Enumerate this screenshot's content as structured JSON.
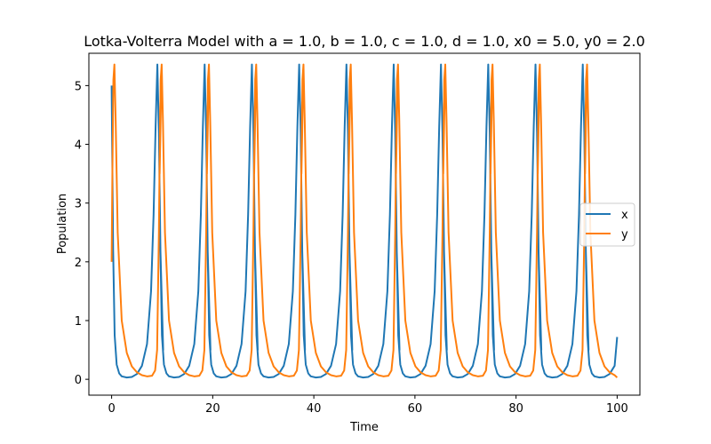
{
  "chart_data": {
    "type": "line",
    "title": "Lotka-Volterra Model with a = 1.0, b = 1.0, c = 1.0, d = 1.0, x0 = 5.0, y0 = 2.0",
    "xlabel": "Time",
    "ylabel": "Population",
    "xlim": [
      -4.5,
      104.5
    ],
    "ylim": [
      -0.27,
      5.55
    ],
    "xticks": [
      0,
      20,
      40,
      60,
      80,
      100
    ],
    "yticks": [
      0,
      1,
      2,
      3,
      4,
      5
    ],
    "grid": false,
    "legend_position": "center-right",
    "model": {
      "a": 1.0,
      "b": 1.0,
      "c": 1.0,
      "d": 1.0,
      "x0": 5.0,
      "y0": 2.0,
      "t_start": 0,
      "t_end": 100
    },
    "series": [
      {
        "name": "x",
        "color": "#1f77b4",
        "points": [
          [
            0.0,
            5.0
          ],
          [
            0.3,
            2.2
          ],
          [
            0.6,
            0.75
          ],
          [
            1.0,
            0.25
          ],
          [
            1.5,
            0.1
          ],
          [
            2.0,
            0.05
          ],
          [
            3.0,
            0.03
          ],
          [
            4.0,
            0.04
          ],
          [
            5.0,
            0.09
          ],
          [
            6.0,
            0.23
          ],
          [
            7.0,
            0.6
          ],
          [
            7.8,
            1.5
          ],
          [
            8.3,
            2.8
          ],
          [
            8.7,
            4.3
          ],
          [
            9.05,
            5.36
          ],
          [
            9.35,
            4.2
          ],
          [
            9.7,
            1.9
          ],
          [
            10.2,
            0.5
          ]
        ],
        "period": 9.35,
        "last": [
          100.0,
          0.72
        ]
      },
      {
        "name": "y",
        "color": "#ff7f0e",
        "points": [
          [
            0.0,
            2.0
          ],
          [
            0.15,
            3.5
          ],
          [
            0.35,
            5.1
          ],
          [
            0.55,
            5.36
          ],
          [
            0.8,
            4.4
          ],
          [
            1.2,
            2.5
          ],
          [
            2.0,
            1.0
          ],
          [
            3.0,
            0.45
          ],
          [
            4.0,
            0.22
          ],
          [
            5.0,
            0.12
          ],
          [
            6.0,
            0.07
          ],
          [
            7.0,
            0.05
          ],
          [
            8.0,
            0.06
          ],
          [
            8.6,
            0.15
          ],
          [
            9.0,
            0.5
          ],
          [
            9.35,
            2.5
          ],
          [
            9.6,
            4.6
          ],
          [
            9.9,
            5.36
          ]
        ],
        "period": 9.35,
        "last": [
          100.0,
          0.03
        ]
      }
    ]
  }
}
